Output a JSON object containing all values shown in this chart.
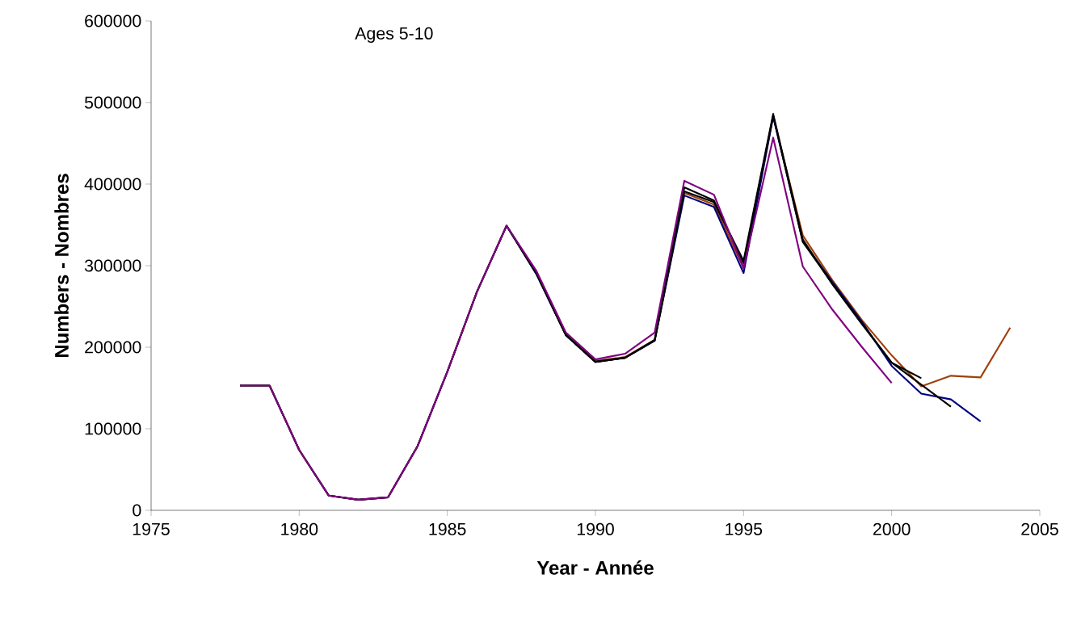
{
  "chart_data": {
    "type": "line",
    "xlabel": "Year - Année",
    "ylabel": "Numbers - Nombres",
    "annotations": [
      "Ages 5-10"
    ],
    "x": [
      1978,
      1979,
      1980,
      1981,
      1982,
      1983,
      1984,
      1985,
      1986,
      1987,
      1988,
      1989,
      1990,
      1991,
      1992,
      1993,
      1994,
      1995,
      1996,
      1997,
      1998,
      1999,
      2000,
      2001,
      2002,
      2003,
      2004
    ],
    "series": [
      {
        "color": "#a0400a",
        "values": [
          null,
          null,
          null,
          null,
          null,
          null,
          null,
          null,
          null,
          null,
          null,
          216000,
          183000,
          188000,
          209000,
          389000,
          375000,
          297000,
          483000,
          337000,
          282000,
          233000,
          190000,
          152000,
          165000,
          163000,
          224000
        ]
      },
      {
        "color": "#000080",
        "values": [
          null,
          null,
          null,
          null,
          null,
          null,
          null,
          null,
          null,
          349000,
          290000,
          215000,
          182000,
          187000,
          208000,
          386000,
          372000,
          291000,
          483000,
          330000,
          280000,
          231000,
          177000,
          143000,
          136000,
          109000,
          null
        ]
      },
      {
        "color": "#000000",
        "values": [
          153000,
          153000,
          74000,
          18000,
          13000,
          16000,
          79000,
          170000,
          268000,
          349000,
          291000,
          215000,
          182000,
          187000,
          209000,
          396000,
          380000,
          303000,
          484000,
          329000,
          278000,
          229000,
          181000,
          154000,
          127000,
          null,
          null
        ]
      },
      {
        "color": "#000000",
        "values": [
          153000,
          153000,
          74000,
          18000,
          13000,
          16000,
          79000,
          170000,
          268000,
          349000,
          291000,
          215000,
          182000,
          187000,
          208000,
          391000,
          378000,
          306000,
          486000,
          332000,
          277000,
          228000,
          181000,
          162000,
          null,
          null,
          null
        ]
      },
      {
        "color": "#800080",
        "values": [
          153000,
          153000,
          74000,
          18000,
          13000,
          16000,
          79000,
          170000,
          268000,
          349000,
          294000,
          218000,
          185000,
          192000,
          218000,
          404000,
          387000,
          297000,
          457000,
          299000,
          246000,
          200000,
          156000,
          null,
          null,
          null,
          null
        ]
      }
    ],
    "xlim": [
      1975,
      2005
    ],
    "xticks": [
      1975,
      1980,
      1985,
      1990,
      1995,
      2000,
      2005
    ],
    "ylim": [
      0,
      600000
    ],
    "yticks": [
      0,
      100000,
      200000,
      300000,
      400000,
      500000,
      600000
    ],
    "grid": false,
    "marker": "none",
    "line_style": "solid"
  }
}
